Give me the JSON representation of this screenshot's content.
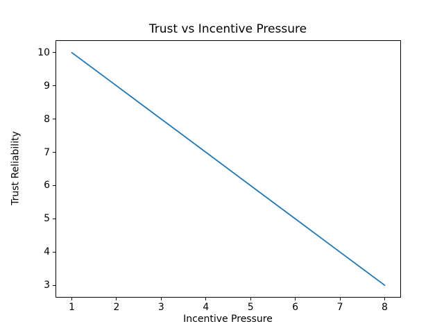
{
  "chart_data": {
    "type": "line",
    "title": "Trust vs Incentive Pressure",
    "xlabel": "Incentive Pressure",
    "ylabel": "Trust Reliability",
    "x": [
      1,
      2,
      3,
      4,
      5,
      6,
      7,
      8
    ],
    "y": [
      10,
      9,
      8,
      7,
      6,
      5,
      4,
      3
    ],
    "x_ticks": [
      1,
      2,
      3,
      4,
      5,
      6,
      7,
      8
    ],
    "y_ticks": [
      3,
      4,
      5,
      6,
      7,
      8,
      9,
      10
    ],
    "xlim": [
      0.65,
      8.35
    ],
    "ylim": [
      2.65,
      10.35
    ],
    "line_color": "#1f77b4",
    "axis_color": "#000000",
    "background_color": "#ffffff",
    "grid": false
  }
}
